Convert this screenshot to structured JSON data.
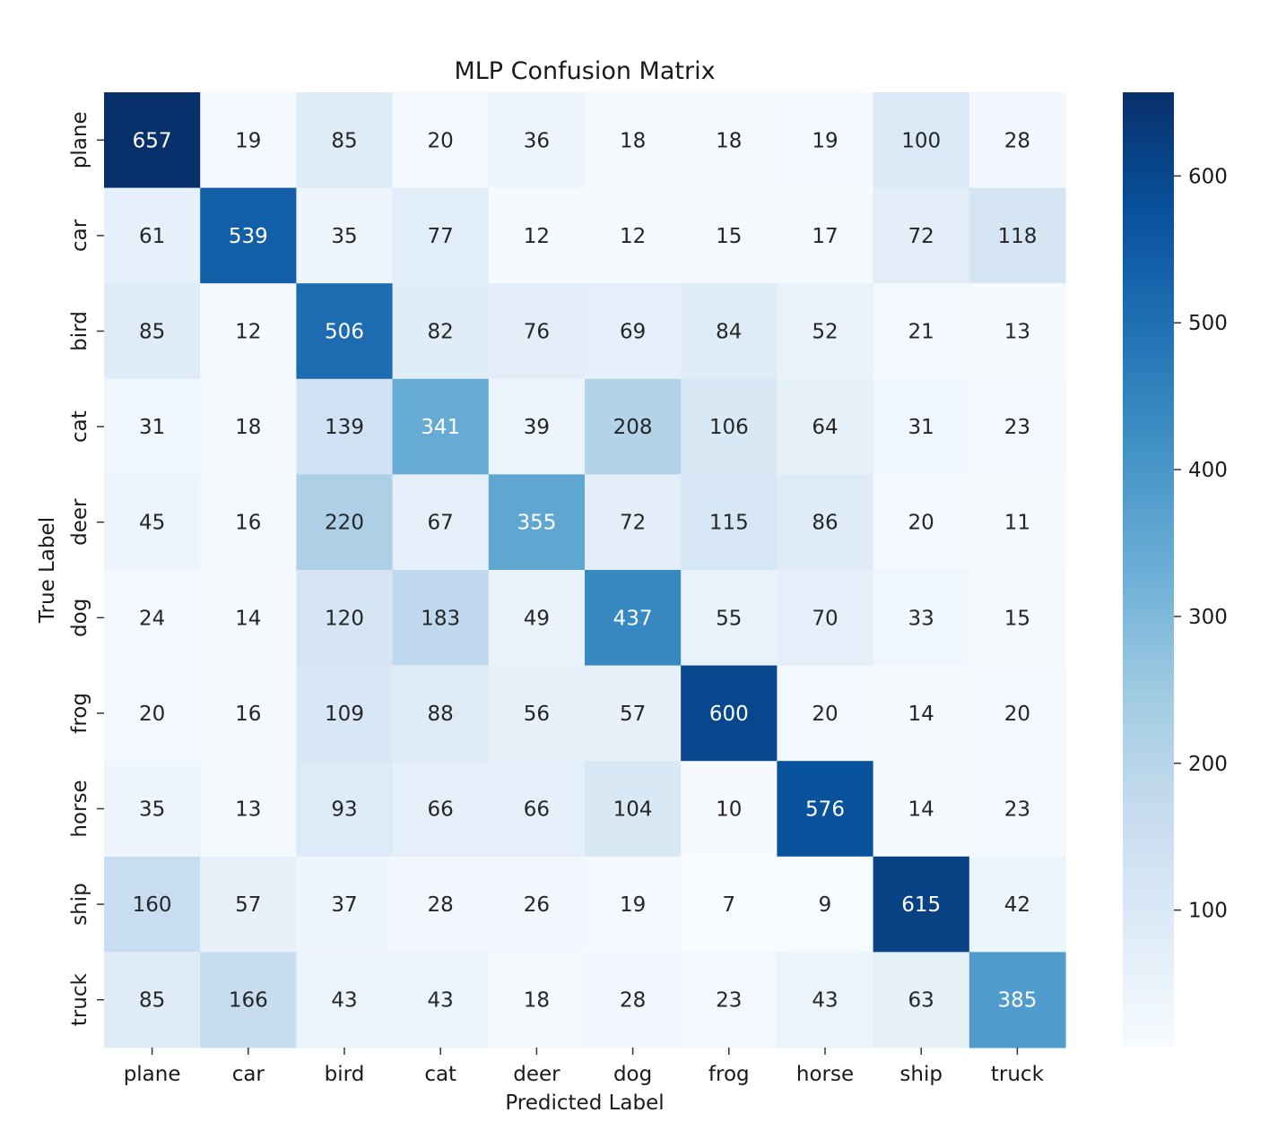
{
  "chart_data": {
    "type": "heatmap",
    "title": "MLP Confusion Matrix",
    "xlabel": "Predicted Label",
    "ylabel": "True Label",
    "x_categories": [
      "plane",
      "car",
      "bird",
      "cat",
      "deer",
      "dog",
      "frog",
      "horse",
      "ship",
      "truck"
    ],
    "y_categories": [
      "plane",
      "car",
      "bird",
      "cat",
      "deer",
      "dog",
      "frog",
      "horse",
      "ship",
      "truck"
    ],
    "values": [
      [
        657,
        19,
        85,
        20,
        36,
        18,
        18,
        19,
        100,
        28
      ],
      [
        61,
        539,
        35,
        77,
        12,
        12,
        15,
        17,
        72,
        118
      ],
      [
        85,
        12,
        506,
        82,
        76,
        69,
        84,
        52,
        21,
        13
      ],
      [
        31,
        18,
        139,
        341,
        39,
        208,
        106,
        64,
        31,
        23
      ],
      [
        45,
        16,
        220,
        67,
        355,
        72,
        115,
        86,
        20,
        11
      ],
      [
        24,
        14,
        120,
        183,
        49,
        437,
        55,
        70,
        33,
        15
      ],
      [
        20,
        16,
        109,
        88,
        56,
        57,
        600,
        20,
        14,
        20
      ],
      [
        35,
        13,
        93,
        66,
        66,
        104,
        10,
        576,
        14,
        23
      ],
      [
        160,
        57,
        37,
        28,
        26,
        19,
        7,
        9,
        615,
        42
      ],
      [
        85,
        166,
        43,
        43,
        18,
        28,
        23,
        43,
        63,
        385
      ]
    ],
    "colormap": "Blues",
    "color_range": [
      7,
      657
    ],
    "colorbar_ticks": [
      100,
      200,
      300,
      400,
      500,
      600
    ],
    "grid": false,
    "colorbar_position": "right"
  }
}
